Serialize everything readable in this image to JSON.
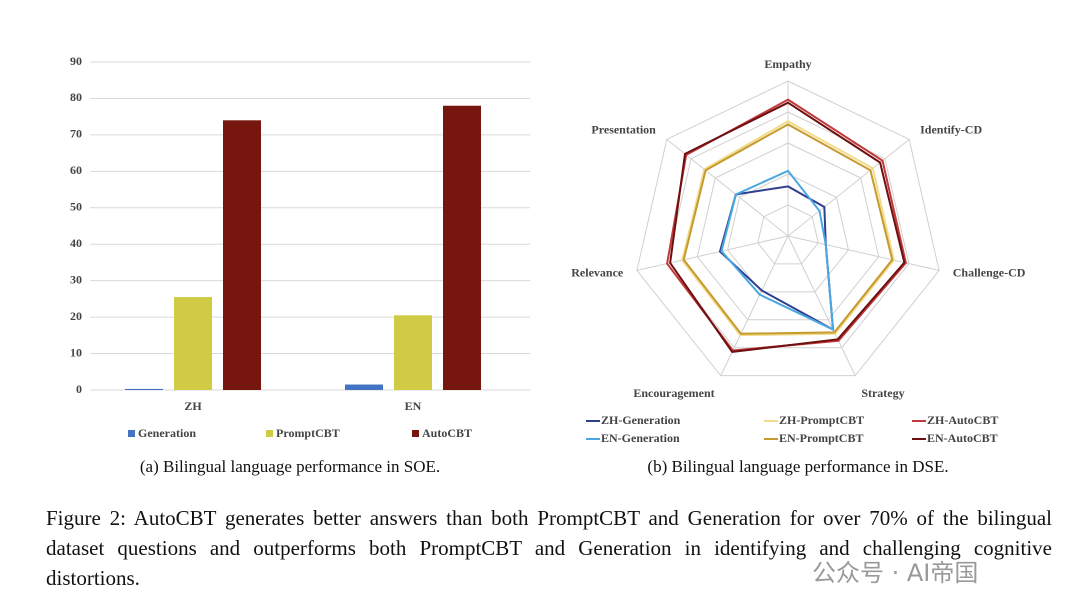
{
  "chart_data": [
    {
      "type": "bar",
      "caption": "(a) Bilingual language performance in SOE.",
      "categories": [
        "ZH",
        "EN"
      ],
      "series": [
        {
          "name": "Generation",
          "color": "#4472c4",
          "values": [
            0.3,
            1.5
          ]
        },
        {
          "name": "PromptCBT",
          "color": "#cfcb45",
          "values": [
            25.5,
            20.5
          ]
        },
        {
          "name": "AutoCBT",
          "color": "#76160f",
          "values": [
            74,
            78
          ]
        }
      ],
      "ylim": [
        0,
        90
      ],
      "yticks": [
        0,
        10,
        20,
        30,
        40,
        50,
        60,
        70,
        80,
        90
      ],
      "grid": true
    },
    {
      "type": "radar",
      "caption": "(b) Bilingual language performance in DSE.",
      "categories": [
        "Empathy",
        "Identify-CD",
        "Challenge-CD",
        "Strategy",
        "Encouragement",
        "Relevance",
        "Presentation"
      ],
      "series": [
        {
          "name": "ZH-Generation",
          "color": "#2f3f8f",
          "values": [
            1.6,
            1.5,
            1.25,
            3.35,
            1.95,
            2.25,
            2.15
          ]
        },
        {
          "name": "EN-Generation",
          "color": "#4aa8e0",
          "values": [
            2.1,
            1.3,
            1.25,
            3.35,
            2.1,
            2.2,
            2.15
          ]
        },
        {
          "name": "ZH-PromptCBT",
          "color": "#f0dc8a",
          "values": [
            3.7,
            3.5,
            3.5,
            3.5,
            3.55,
            3.5,
            3.45
          ]
        },
        {
          "name": "EN-PromptCBT",
          "color": "#c79a2e",
          "values": [
            3.6,
            3.4,
            3.45,
            3.45,
            3.5,
            3.45,
            3.4
          ]
        },
        {
          "name": "ZH-AutoCBT",
          "color": "#c0393b",
          "values": [
            4.4,
            3.9,
            3.9,
            3.75,
            4.1,
            4.0,
            4.2
          ]
        },
        {
          "name": "EN-AutoCBT",
          "color": "#6e1010",
          "values": [
            4.3,
            3.8,
            3.85,
            3.7,
            4.15,
            3.9,
            4.25
          ]
        }
      ],
      "rlim": [
        0,
        5
      ],
      "rticks": [
        1,
        2,
        3,
        4,
        5
      ],
      "grid": true
    }
  ],
  "figure_caption": "Figure 2:  AutoCBT generates better answers than both PromptCBT and Generation for over 70% of the bilingual dataset questions and outperforms both PromptCBT and Generation in identifying and challenging cognitive distortions.",
  "watermark": "公众号 · AI帝国"
}
